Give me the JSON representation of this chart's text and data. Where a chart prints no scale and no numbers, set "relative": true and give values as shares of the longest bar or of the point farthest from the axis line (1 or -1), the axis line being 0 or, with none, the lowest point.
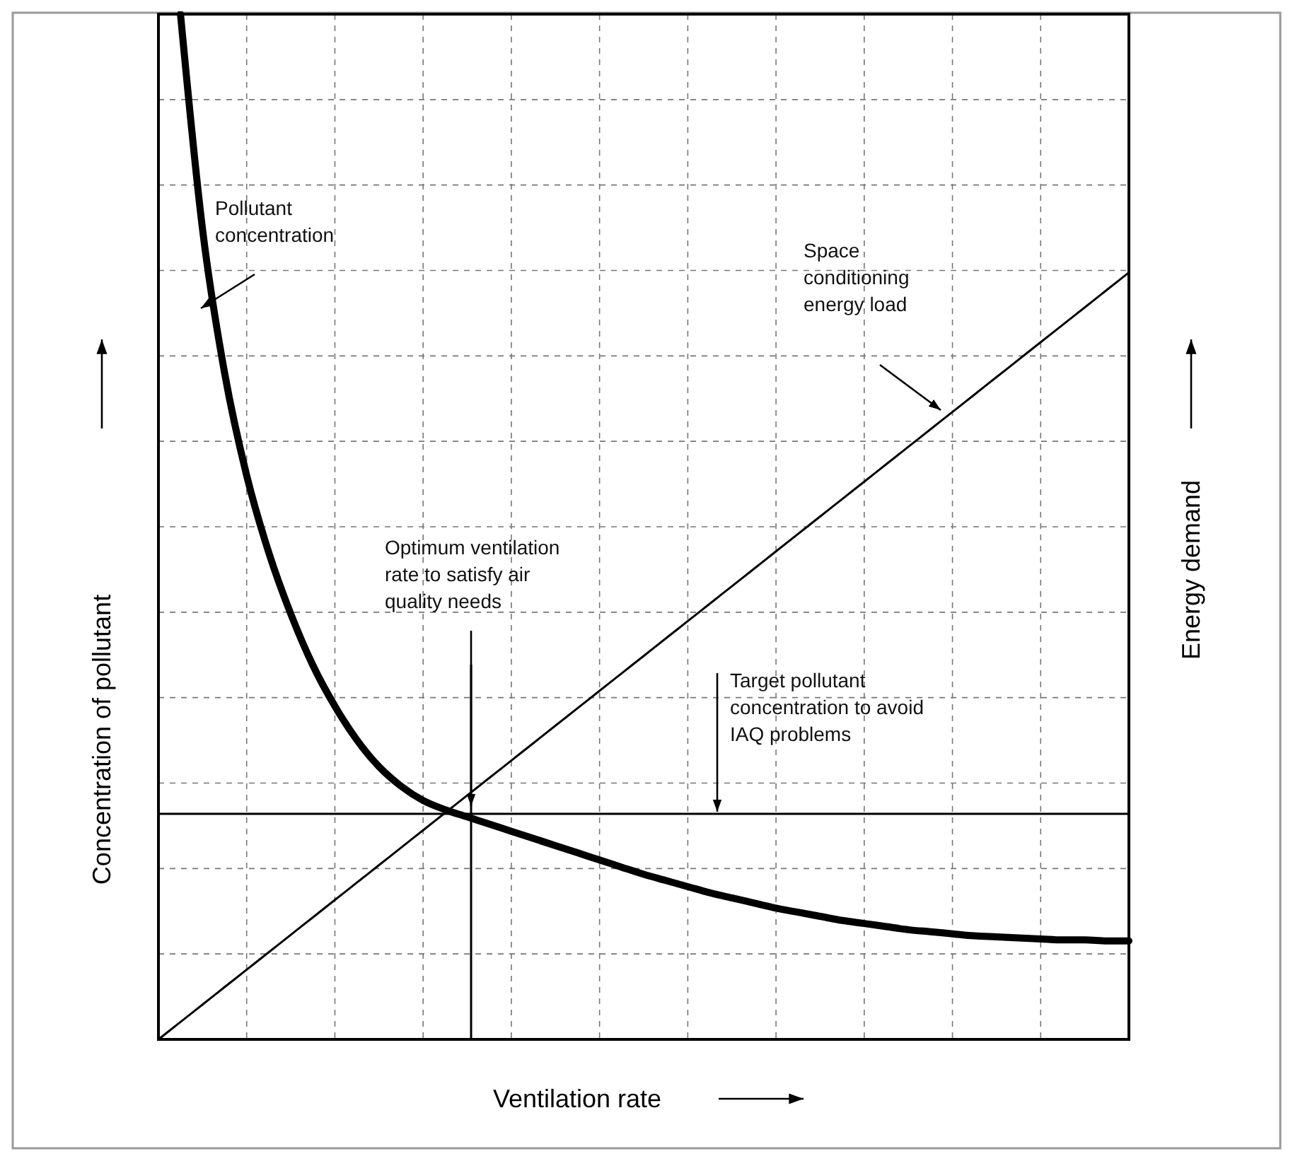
{
  "chart_data": {
    "type": "line",
    "relative": true,
    "xlabel": "Ventilation rate",
    "ylabel": "Concentration of pollutant",
    "y2label": "Energy demand",
    "grid": true,
    "marker": "none",
    "line_style": "solid",
    "categories": [
      null,
      null,
      null,
      null,
      null,
      null,
      null,
      null,
      null,
      null,
      null,
      null,
      null,
      null,
      null,
      null,
      null,
      null,
      null,
      null,
      null,
      null,
      null,
      null,
      null,
      null,
      null,
      null,
      null,
      null,
      null,
      null,
      null,
      null,
      null,
      null,
      null,
      null,
      null,
      null,
      null,
      null,
      null,
      null,
      null
    ],
    "series": [
      {
        "color": "#000000",
        "values": [
          null,
          1.0,
          0.79,
          0.65,
          0.55,
          0.475,
          0.415,
          0.365,
          0.325,
          0.292,
          0.266,
          0.247,
          0.233,
          0.224,
          0.217,
          0.21,
          0.203,
          0.196,
          0.189,
          0.182,
          0.175,
          0.168,
          0.161,
          0.155,
          0.149,
          0.143,
          0.138,
          0.133,
          0.128,
          0.124,
          0.12,
          0.116,
          0.113,
          0.11,
          0.107,
          0.105,
          0.103,
          0.101,
          0.1,
          0.099,
          0.098,
          0.097,
          0.097,
          0.096,
          0.096
        ]
      },
      {
        "color": "#000000",
        "values": [
          0,
          0.017,
          0.034,
          0.051,
          0.068,
          0.085,
          0.102,
          0.119,
          0.136,
          0.153,
          0.17,
          0.187,
          0.204,
          0.221,
          0.238,
          0.255,
          0.272,
          0.289,
          0.306,
          0.323,
          0.34,
          0.357,
          0.374,
          0.391,
          0.408,
          0.425,
          0.442,
          0.459,
          0.476,
          0.493,
          0.51,
          0.527,
          0.544,
          0.561,
          0.578,
          0.595,
          0.612,
          0.629,
          0.646,
          0.663,
          0.68,
          0.697,
          0.714,
          0.731,
          0.748
        ]
      }
    ],
    "ref_lines": [
      {
        "axis": "y",
        "value": 0.22
      }
    ],
    "annotations": [
      "Pollutant concentration",
      "Space conditioning energy load",
      "Optimum ventilation rate to satisfy air quality needs",
      "Target pollutant concentration to avoid IAQ problems"
    ]
  }
}
